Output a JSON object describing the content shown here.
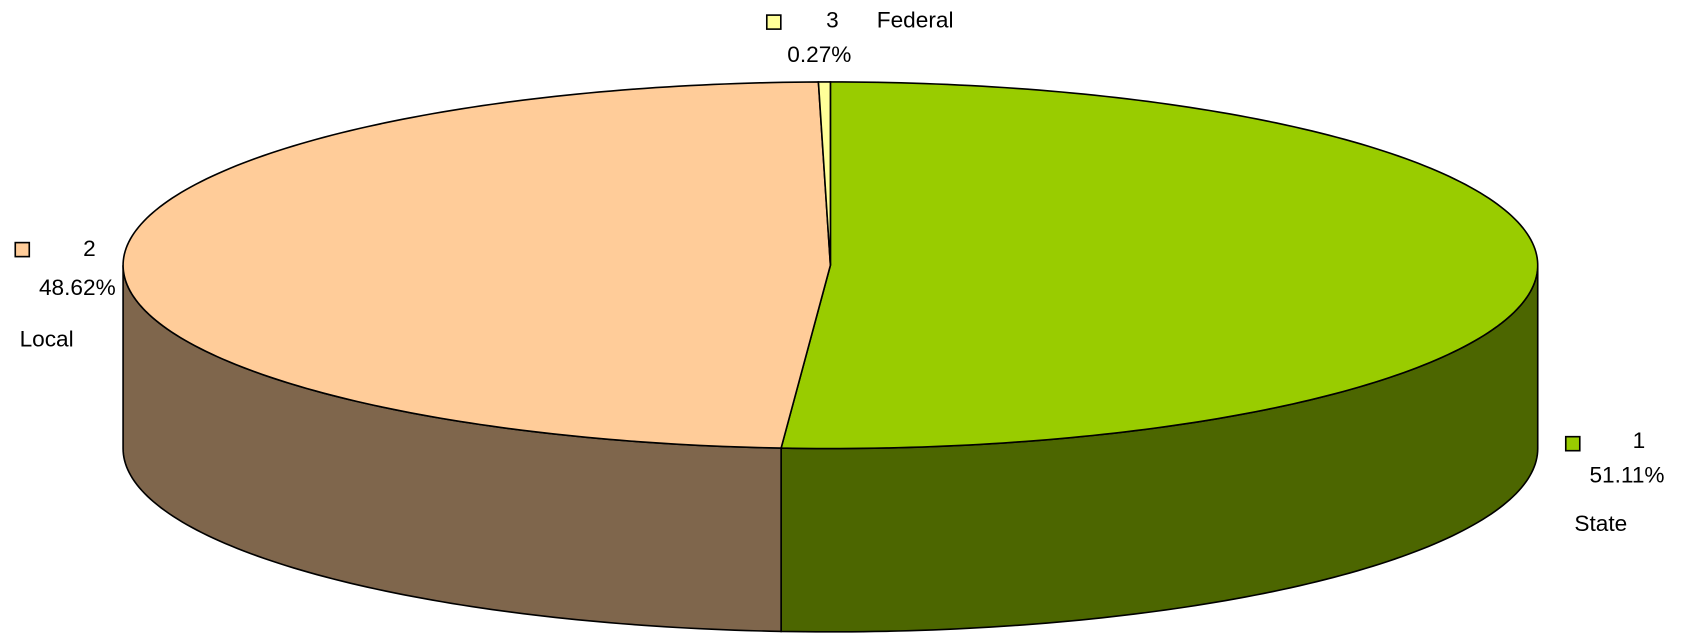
{
  "chart_data": {
    "type": "pie3d",
    "categories": [
      "State",
      "Local",
      "Federal"
    ],
    "category_ids": [
      "1",
      "2",
      "3"
    ],
    "values": [
      51.11,
      48.62,
      0.27
    ],
    "value_labels": [
      "51.11%",
      "48.62%",
      "0.27%"
    ],
    "colors": [
      "#99cc00",
      "#ffcc99",
      "#ffff99"
    ]
  }
}
